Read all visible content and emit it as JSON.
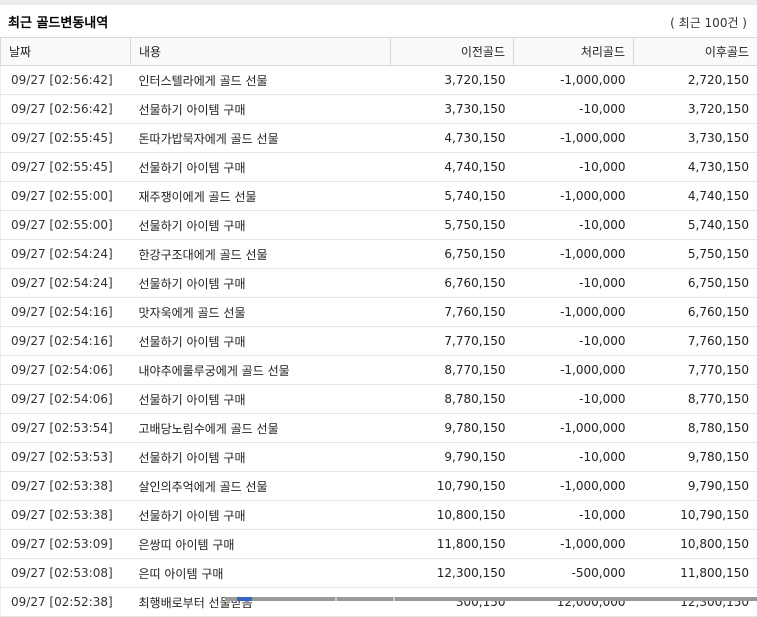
{
  "page": {
    "title": "최근 골드변동내역",
    "count_label": "( 최근 100건 )"
  },
  "table": {
    "columns": {
      "date": "날짜",
      "description": "내용",
      "before_gold": "이전골드",
      "change_gold": "처리골드",
      "after_gold": "이후골드"
    },
    "rows": [
      {
        "date": "09/27 [02:56:42]",
        "desc": "인터스텔라에게 골드 선물",
        "before": "3,720,150",
        "change": "-1,000,000",
        "after": "2,720,150"
      },
      {
        "date": "09/27 [02:56:42]",
        "desc": "선물하기 아이템 구매",
        "before": "3,730,150",
        "change": "-10,000",
        "after": "3,720,150"
      },
      {
        "date": "09/27 [02:55:45]",
        "desc": "돈따가밥묵자에게 골드 선물",
        "before": "4,730,150",
        "change": "-1,000,000",
        "after": "3,730,150"
      },
      {
        "date": "09/27 [02:55:45]",
        "desc": "선물하기 아이템 구매",
        "before": "4,740,150",
        "change": "-10,000",
        "after": "4,730,150"
      },
      {
        "date": "09/27 [02:55:00]",
        "desc": "재주쟁이에게 골드 선물",
        "before": "5,740,150",
        "change": "-1,000,000",
        "after": "4,740,150"
      },
      {
        "date": "09/27 [02:55:00]",
        "desc": "선물하기 아이템 구매",
        "before": "5,750,150",
        "change": "-10,000",
        "after": "5,740,150"
      },
      {
        "date": "09/27 [02:54:24]",
        "desc": "한강구조대에게 골드 선물",
        "before": "6,750,150",
        "change": "-1,000,000",
        "after": "5,750,150"
      },
      {
        "date": "09/27 [02:54:24]",
        "desc": "선물하기 아이템 구매",
        "before": "6,760,150",
        "change": "-10,000",
        "after": "6,750,150"
      },
      {
        "date": "09/27 [02:54:16]",
        "desc": "맛자욱에게 골드 선물",
        "before": "7,760,150",
        "change": "-1,000,000",
        "after": "6,760,150"
      },
      {
        "date": "09/27 [02:54:16]",
        "desc": "선물하기 아이템 구매",
        "before": "7,770,150",
        "change": "-10,000",
        "after": "7,760,150"
      },
      {
        "date": "09/27 [02:54:06]",
        "desc": "내야추에룰루궁에게 골드 선물",
        "before": "8,770,150",
        "change": "-1,000,000",
        "after": "7,770,150"
      },
      {
        "date": "09/27 [02:54:06]",
        "desc": "선물하기 아이템 구매",
        "before": "8,780,150",
        "change": "-10,000",
        "after": "8,770,150"
      },
      {
        "date": "09/27 [02:53:54]",
        "desc": "고배당노림수에게 골드 선물",
        "before": "9,780,150",
        "change": "-1,000,000",
        "after": "8,780,150"
      },
      {
        "date": "09/27 [02:53:53]",
        "desc": "선물하기 아이템 구매",
        "before": "9,790,150",
        "change": "-10,000",
        "after": "9,780,150"
      },
      {
        "date": "09/27 [02:53:38]",
        "desc": "살인의추억에게 골드 선물",
        "before": "10,790,150",
        "change": "-1,000,000",
        "after": "9,790,150"
      },
      {
        "date": "09/27 [02:53:38]",
        "desc": "선물하기 아이템 구매",
        "before": "10,800,150",
        "change": "-10,000",
        "after": "10,790,150"
      },
      {
        "date": "09/27 [02:53:09]",
        "desc": "은쌍띠 아이템 구매",
        "before": "11,800,150",
        "change": "-1,000,000",
        "after": "10,800,150"
      },
      {
        "date": "09/27 [02:53:08]",
        "desc": "은띠 아이템 구매",
        "before": "12,300,150",
        "change": "-500,000",
        "after": "11,800,150"
      },
      {
        "date": "09/27 [02:52:38]",
        "desc": "최행배로부터 선물받음",
        "before": "300,150",
        "change": "12,000,000",
        "after": "12,300,150"
      }
    ]
  }
}
